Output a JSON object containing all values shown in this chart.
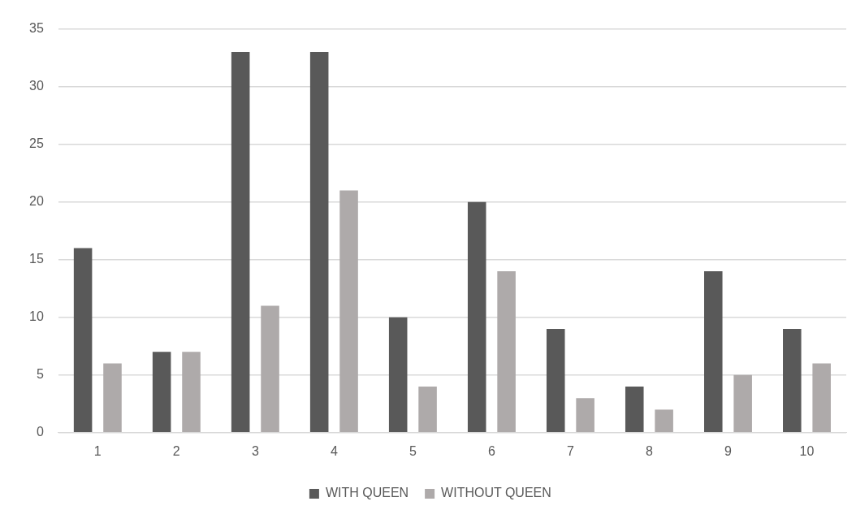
{
  "chart_data": {
    "type": "bar",
    "categories": [
      "1",
      "2",
      "3",
      "4",
      "5",
      "6",
      "7",
      "8",
      "9",
      "10"
    ],
    "series": [
      {
        "name": "WITH QUEEN",
        "color": "#595959",
        "values": [
          16,
          7,
          33,
          33,
          10,
          20,
          9,
          4,
          14,
          9
        ]
      },
      {
        "name": "WITHOUT QUEEN",
        "color": "#aeaaaa",
        "values": [
          6,
          7,
          11,
          21,
          4,
          14,
          3,
          2,
          5,
          6
        ]
      }
    ],
    "ylim": [
      0,
      35
    ],
    "yticks": [
      0,
      5,
      10,
      15,
      20,
      25,
      30,
      35
    ],
    "grid": "y",
    "legend": "bottom"
  }
}
